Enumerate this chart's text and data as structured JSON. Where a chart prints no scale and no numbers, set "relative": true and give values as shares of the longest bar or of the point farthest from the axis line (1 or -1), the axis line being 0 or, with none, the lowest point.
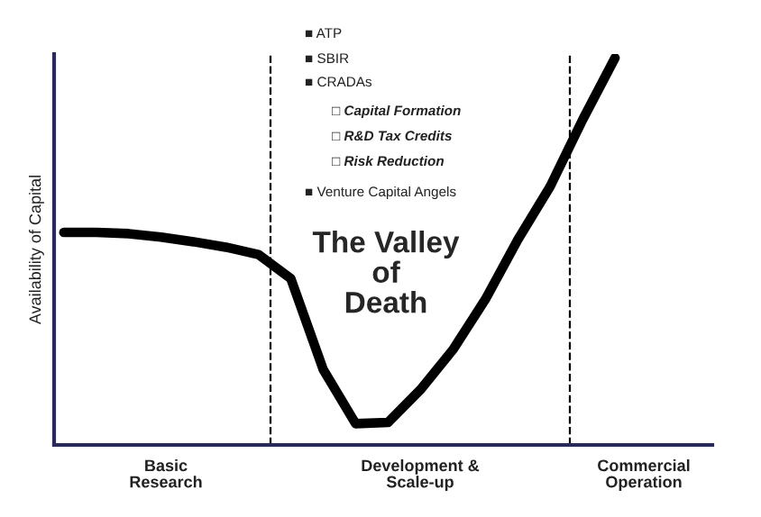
{
  "chart_data": {
    "type": "line",
    "relative": true,
    "ylabel": "Availability of Capital",
    "categories": [
      null,
      null,
      null,
      null,
      null,
      null,
      null,
      null,
      null,
      null,
      null,
      null,
      null,
      null,
      null,
      null,
      null,
      null,
      null,
      null,
      null
    ],
    "series": [
      {
        "color": "#000000",
        "values": [
          0.549,
          0.549,
          0.546,
          0.537,
          0.525,
          0.511,
          0.492,
          0.43,
          0.195,
          0.055,
          0.058,
          0.143,
          0.246,
          0.376,
          0.53,
          0.668,
          0.84,
          1.0,
          null,
          null,
          null
        ]
      }
    ],
    "annotations": [
      "■ ATP",
      "■ SBIR",
      "■ CRADAs",
      "□ Capital Formation",
      "□ R&D Tax Credits",
      "□ Risk Reduction",
      "■ Venture Capital Angels",
      "The Valley\nof\nDeath",
      "Basic\nResearch",
      "Development &\nScale-up",
      "Commercial\nOperation"
    ],
    "grid": false,
    "legend": false,
    "marker": "none",
    "line_style": "solid"
  }
}
